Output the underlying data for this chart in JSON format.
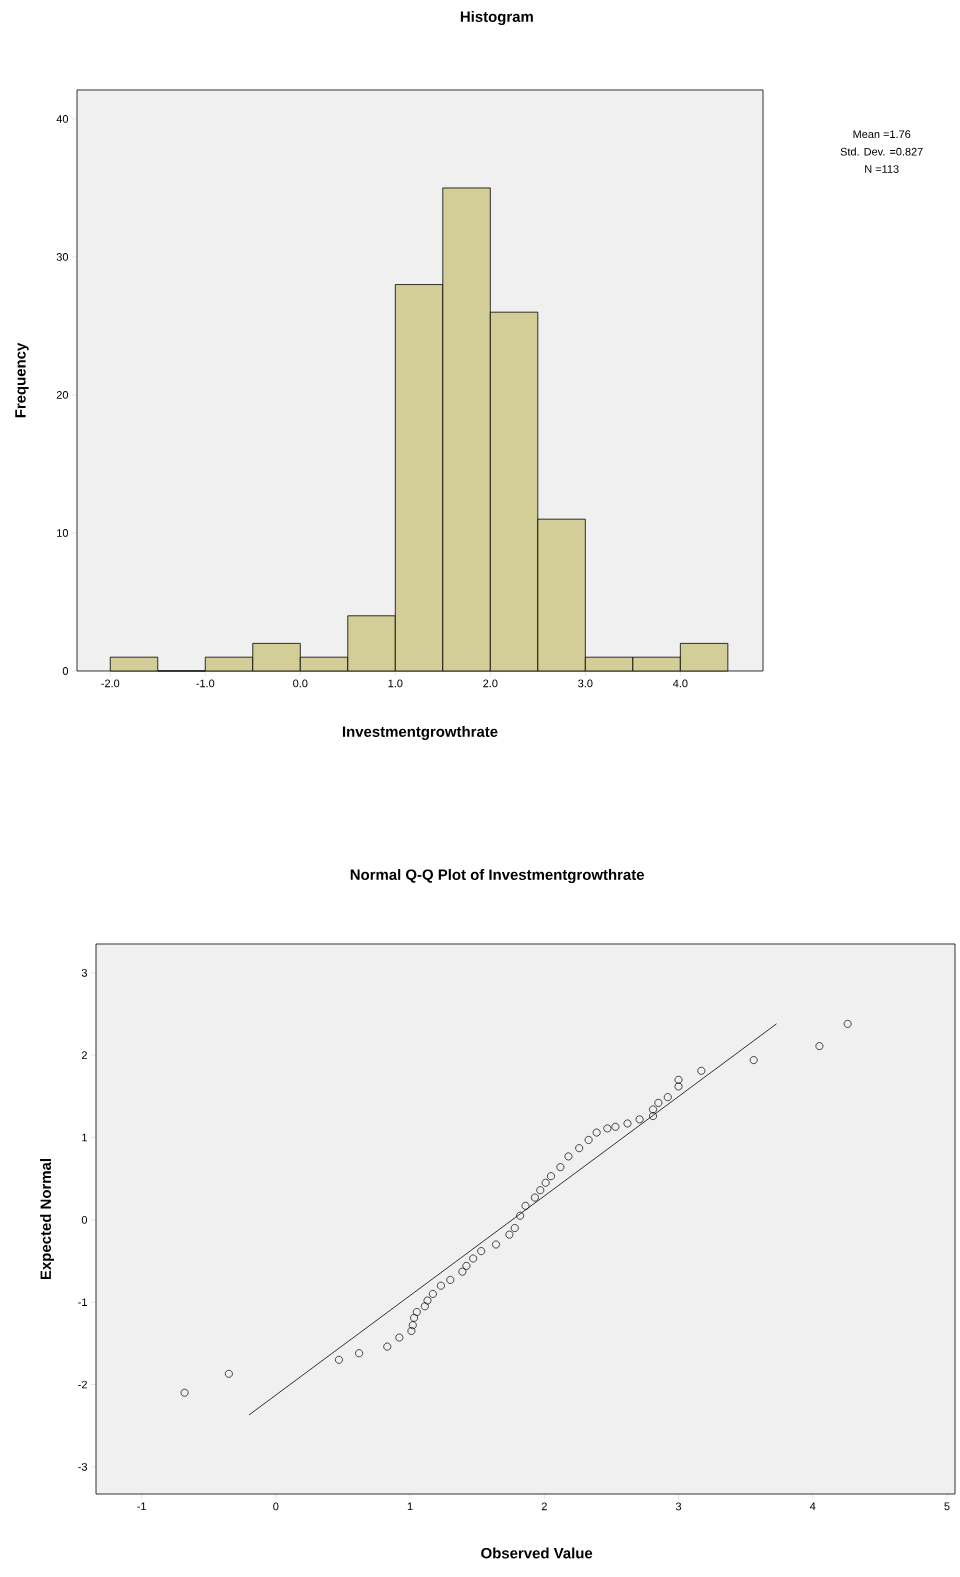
{
  "chart_data": [
    {
      "type": "histogram",
      "title": "Histogram",
      "xlabel": "Investmentgrowthrate",
      "ylabel": "Frequency",
      "bins": [
        -2.0,
        -1.5,
        -1.0,
        -0.5,
        0.0,
        0.5,
        1.0,
        1.5,
        2.0,
        2.5,
        3.0,
        3.5,
        4.0,
        4.5
      ],
      "values": [
        1,
        0,
        1,
        2,
        1,
        4,
        28,
        35,
        26,
        11,
        1,
        1,
        2
      ],
      "color": "#d3ce98",
      "xlim": [
        -2.35,
        4.87
      ],
      "ylim": [
        0,
        42.1
      ],
      "xticks": [
        {
          "value": -2,
          "label": "-2.0"
        },
        {
          "value": -1,
          "label": "-1.0"
        },
        {
          "value": 0,
          "label": "0.0"
        },
        {
          "value": 1,
          "label": "1.0"
        },
        {
          "value": 2,
          "label": "2.0"
        },
        {
          "value": 3,
          "label": "3.0"
        },
        {
          "value": 4,
          "label": "4.0"
        }
      ],
      "yticks": [
        0,
        10,
        20,
        30,
        40
      ],
      "annotations": [
        "Mean =1.76",
        "Std. Dev. =0.827",
        "N =113"
      ]
    },
    {
      "type": "scatter",
      "title": "Normal Q-Q Plot of Investmentgrowthrate",
      "xlabel": "Observed Value",
      "ylabel": "Expected Normal",
      "xlim": [
        -1.34,
        5.06
      ],
      "ylim": [
        -3.33,
        3.35
      ],
      "xticks": [
        -1,
        0,
        1,
        2,
        3,
        4,
        5
      ],
      "yticks": [
        -3,
        -2,
        -1,
        0,
        1,
        2,
        3
      ],
      "series": [
        {
          "type": "scatter",
          "color": "#000000",
          "marker": "circle",
          "x": [
            -0.68,
            -0.35,
            0.47,
            0.62,
            0.83,
            0.92,
            1.01,
            1.02,
            1.03,
            1.05,
            1.11,
            1.13,
            1.17,
            1.23,
            1.3,
            1.39,
            1.42,
            1.47,
            1.53,
            1.64,
            1.74,
            1.78,
            1.82,
            1.86,
            1.93,
            1.97,
            2.01,
            2.05,
            2.12,
            2.18,
            2.26,
            2.33,
            2.39,
            2.47,
            2.53,
            2.62,
            2.71,
            2.81,
            2.81,
            2.85,
            2.92,
            3.0,
            3.0,
            3.17,
            3.56,
            4.05,
            4.26
          ],
          "values": [
            -2.1,
            -1.87,
            -1.7,
            -1.62,
            -1.54,
            -1.43,
            -1.35,
            -1.28,
            -1.19,
            -1.12,
            -1.05,
            -0.98,
            -0.9,
            -0.8,
            -0.73,
            -0.63,
            -0.56,
            -0.47,
            -0.38,
            -0.3,
            -0.18,
            -0.1,
            0.05,
            0.17,
            0.27,
            0.36,
            0.45,
            0.53,
            0.64,
            0.77,
            0.87,
            0.97,
            1.06,
            1.11,
            1.13,
            1.17,
            1.22,
            1.26,
            1.34,
            1.42,
            1.49,
            1.62,
            1.7,
            1.81,
            1.94,
            2.11,
            2.38
          ]
        },
        {
          "type": "line",
          "color": "#000000",
          "x": [
            -0.2,
            3.73
          ],
          "values": [
            -2.37,
            2.38
          ]
        }
      ]
    }
  ]
}
